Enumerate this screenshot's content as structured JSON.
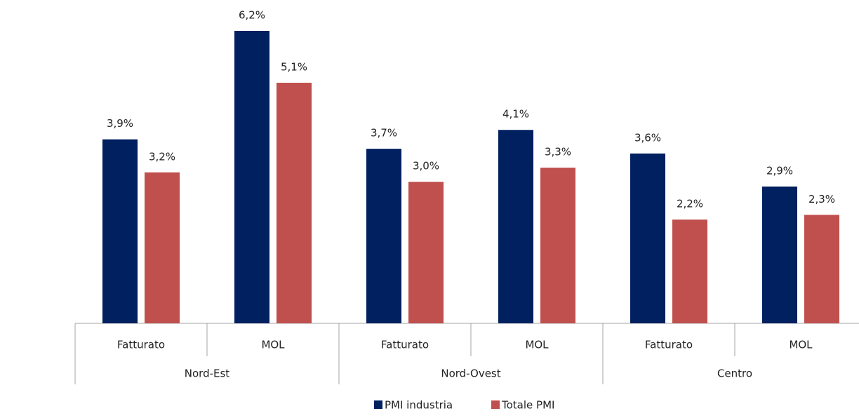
{
  "chart_data": {
    "type": "bar",
    "categories": [
      "Fatturato",
      "MOL",
      "Fatturato",
      "MOL",
      "Fatturato",
      "MOL"
    ],
    "groups": [
      "Nord-Est",
      "Nord-Ovest",
      "Centro"
    ],
    "series": [
      {
        "name": "PMI industria",
        "color": "#002060",
        "values": [
          3.9,
          6.2,
          3.7,
          4.1,
          3.6,
          2.9
        ],
        "value_labels": [
          "3,9%",
          "6,2%",
          "3,7%",
          "4,1%",
          "3,6%",
          "2,9%"
        ]
      },
      {
        "name": "Totale PMI",
        "color": "#c0504d",
        "values": [
          3.2,
          5.1,
          3.0,
          3.3,
          2.2,
          2.3
        ],
        "value_labels": [
          "3,2%",
          "5,1%",
          "3,0%",
          "3,3%",
          "2,2%",
          "2,3%"
        ]
      }
    ]
  }
}
